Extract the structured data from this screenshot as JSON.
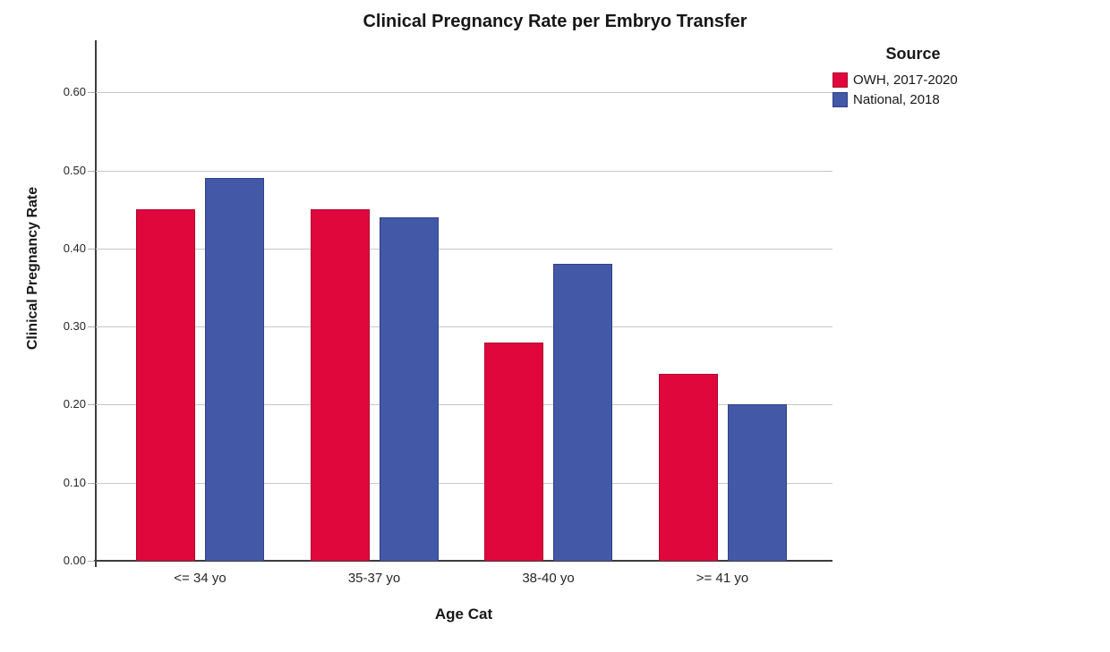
{
  "chart_data": {
    "type": "bar",
    "title": "Clinical Pregnancy Rate per Embryo Transfer",
    "xlabel": "Age Cat",
    "ylabel": "Clinical Pregnancy Rate",
    "legend_title": "Source",
    "legend_position": "top-right",
    "grid": true,
    "categories": [
      "<= 34 yo",
      "35-37 yo",
      "38-40 yo",
      ">= 41 yo"
    ],
    "series": [
      {
        "name": "OWH, 2017-2020",
        "color": "#e0073c",
        "border_color": "#b00530",
        "values": [
          0.45,
          0.45,
          0.28,
          0.24
        ]
      },
      {
        "name": "National, 2018",
        "color": "#4458a8",
        "border_color": "#2f4185",
        "values": [
          0.49,
          0.44,
          0.38,
          0.2
        ]
      }
    ],
    "yticks": [
      0.0,
      0.1,
      0.2,
      0.3,
      0.4,
      0.5,
      0.6
    ],
    "ytick_format": "0.00",
    "ylim": [
      0,
      0.667
    ],
    "axis_color": "#3c3c3c",
    "gridline_color": "#c8c8c8"
  }
}
